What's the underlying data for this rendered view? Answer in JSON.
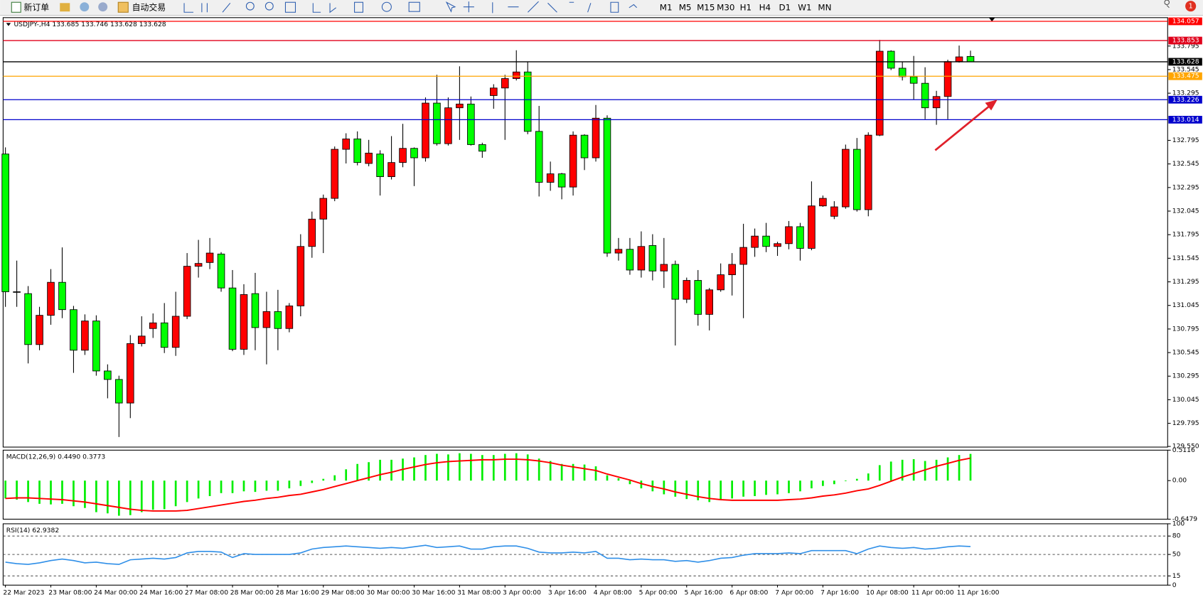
{
  "toolbar": {
    "buttons": [
      "新订单",
      "自动交易"
    ],
    "timeframes": [
      "M1",
      "M5",
      "M15",
      "M30",
      "H1",
      "H4",
      "D1",
      "W1",
      "MN"
    ],
    "badge": "1"
  },
  "chart_data": [
    {
      "type": "candlestick",
      "label": "USDJPY-,H4 133.685 133.746 133.628 133.628",
      "up_color": "#ff0000",
      "down_color": "#00ff00",
      "categories": [
        "22 Mar 2023",
        null,
        null,
        null,
        "23 Mar 08:00",
        null,
        null,
        null,
        "24 Mar 00:00",
        null,
        null,
        null,
        "24 Mar 16:00",
        null,
        null,
        null,
        "27 Mar 08:00",
        null,
        null,
        null,
        "28 Mar 00:00",
        null,
        null,
        null,
        "28 Mar 16:00",
        null,
        null,
        null,
        "29 Mar 08:00",
        null,
        null,
        null,
        "30 Mar 00:00",
        null,
        null,
        null,
        "30 Mar 16:00",
        null,
        null,
        null,
        "31 Mar 08:00",
        null,
        null,
        null,
        "3 Apr 00:00",
        null,
        null,
        null,
        "3 Apr 16:00",
        null,
        null,
        null,
        "4 Apr 08:00",
        null,
        null,
        null,
        "5 Apr 00:00",
        null,
        null,
        null,
        "5 Apr 16:00",
        null,
        null,
        null,
        "6 Apr 08:00",
        null,
        null,
        null,
        "7 Apr 00:00",
        null,
        null,
        null,
        "7 Apr 16:00",
        null,
        null,
        null,
        "10 Apr 08:00",
        null,
        null,
        null,
        "11 Apr 00:00",
        null,
        null,
        null,
        "11 Apr 16:00",
        null
      ],
      "open": [
        132.65,
        131.19,
        131.17,
        130.63,
        130.94,
        131.29,
        131.0,
        130.57,
        130.88,
        130.35,
        130.26,
        130.01,
        130.64,
        130.8,
        130.86,
        130.6,
        130.93,
        131.46,
        131.5,
        131.59,
        131.23,
        130.58,
        131.17,
        130.81,
        130.98,
        130.8,
        131.04,
        131.67,
        131.96,
        132.18,
        132.7,
        132.81,
        132.55,
        132.65,
        132.41,
        132.56,
        132.71,
        132.61,
        133.19,
        132.76,
        133.14,
        133.18,
        132.75,
        133.27,
        133.35,
        133.45,
        133.52,
        132.89,
        132.35,
        132.44,
        132.3,
        132.85,
        132.61,
        133.03,
        131.6,
        131.64,
        131.42,
        131.68,
        131.41,
        131.48,
        131.11,
        131.31,
        130.95,
        131.21,
        131.37,
        131.48,
        131.66,
        131.78,
        131.67,
        131.7,
        131.88,
        131.65,
        132.1,
        131.99,
        132.09,
        132.7,
        132.06,
        132.85,
        133.74,
        133.56,
        133.47,
        133.4,
        133.14,
        133.26,
        133.63,
        133.685
      ],
      "high": [
        132.72,
        131.52,
        131.25,
        131.03,
        131.43,
        131.66,
        131.04,
        130.95,
        130.94,
        130.42,
        130.3,
        130.73,
        130.93,
        130.96,
        131.07,
        131.19,
        131.6,
        131.74,
        131.76,
        131.61,
        131.42,
        131.27,
        131.39,
        131.19,
        131.21,
        131.07,
        131.8,
        132.04,
        132.22,
        132.73,
        132.87,
        132.89,
        132.8,
        132.69,
        132.84,
        132.97,
        132.72,
        133.25,
        133.49,
        133.25,
        133.58,
        133.26,
        132.77,
        133.39,
        133.49,
        133.75,
        133.63,
        133.16,
        132.57,
        132.45,
        132.89,
        132.86,
        133.17,
        133.06,
        131.76,
        131.76,
        131.83,
        131.8,
        131.76,
        131.52,
        131.34,
        131.42,
        131.23,
        131.49,
        131.6,
        131.91,
        131.86,
        131.92,
        131.72,
        131.94,
        131.92,
        132.36,
        132.21,
        132.15,
        132.75,
        132.82,
        132.88,
        133.86,
        133.75,
        133.63,
        133.69,
        133.57,
        133.32,
        133.65,
        133.8,
        133.746
      ],
      "low": [
        131.03,
        131.03,
        130.43,
        130.57,
        130.84,
        130.91,
        130.33,
        130.52,
        130.3,
        130.06,
        129.65,
        129.85,
        130.61,
        130.7,
        130.54,
        130.51,
        130.9,
        131.34,
        131.43,
        131.19,
        130.56,
        130.52,
        130.57,
        130.42,
        130.57,
        130.76,
        130.93,
        131.55,
        131.6,
        132.15,
        132.55,
        132.53,
        132.52,
        132.21,
        132.38,
        132.51,
        132.31,
        132.57,
        132.74,
        132.74,
        132.8,
        132.74,
        132.61,
        133.13,
        132.8,
        133.43,
        132.86,
        132.2,
        132.26,
        132.17,
        132.21,
        132.48,
        132.57,
        131.56,
        131.52,
        131.37,
        131.34,
        131.31,
        131.23,
        130.62,
        131.07,
        130.83,
        130.78,
        131.19,
        131.15,
        130.91,
        131.56,
        131.61,
        131.57,
        131.64,
        131.52,
        131.63,
        132.09,
        131.96,
        132.07,
        132.04,
        131.99,
        132.84,
        133.54,
        133.43,
        133.23,
        133.02,
        132.96,
        133.02,
        133.62,
        133.628
      ],
      "close": [
        131.19,
        131.19,
        130.63,
        130.94,
        131.29,
        131.0,
        130.57,
        130.88,
        130.35,
        130.26,
        130.01,
        130.64,
        130.72,
        130.86,
        130.6,
        130.93,
        131.46,
        131.49,
        131.6,
        131.23,
        130.58,
        131.16,
        130.81,
        130.98,
        130.8,
        131.04,
        131.67,
        131.96,
        132.18,
        132.7,
        132.81,
        132.56,
        132.66,
        132.41,
        132.56,
        132.71,
        132.61,
        133.19,
        132.76,
        133.14,
        133.18,
        132.75,
        132.68,
        133.35,
        133.45,
        133.52,
        132.89,
        132.35,
        132.44,
        132.3,
        132.85,
        132.61,
        133.03,
        131.6,
        131.64,
        131.42,
        131.67,
        131.41,
        131.48,
        131.11,
        131.31,
        130.95,
        131.21,
        131.37,
        131.48,
        131.66,
        131.78,
        131.67,
        131.7,
        131.88,
        131.65,
        132.1,
        132.18,
        132.09,
        132.7,
        132.06,
        132.85,
        133.74,
        133.56,
        133.47,
        133.4,
        133.14,
        133.26,
        133.63,
        133.68,
        133.628
      ],
      "ylim": [
        129.543,
        134.096
      ],
      "yticks": [
        133.795,
        133.545,
        133.295,
        132.795,
        132.545,
        132.295,
        132.045,
        131.795,
        131.545,
        131.295,
        131.045,
        130.795,
        130.545,
        130.295,
        130.045,
        129.795,
        {
          "value": 129.55,
          "label": "129.550"
        }
      ],
      "levels": [
        {
          "value": 134.057,
          "color": "#ff0000"
        },
        {
          "value": 133.853,
          "color": "#e0001a"
        },
        {
          "value": 133.628,
          "color": "#000000"
        },
        {
          "value": 133.475,
          "color": "#ffa500"
        },
        {
          "value": 133.226,
          "color": "#0000cc"
        },
        {
          "value": 133.014,
          "color": "#0000cc"
        }
      ],
      "grid": false
    },
    {
      "type": "macd",
      "label": "MACD(12,26,9) 0.4490 0.3773",
      "series": [
        {
          "color": "#00ee00",
          "values": [
            -0.3,
            -0.32,
            -0.36,
            -0.39,
            -0.4,
            -0.39,
            -0.43,
            -0.46,
            -0.53,
            -0.55,
            -0.59,
            -0.58,
            -0.53,
            -0.49,
            -0.48,
            -0.43,
            -0.36,
            -0.3,
            -0.26,
            -0.21,
            -0.21,
            -0.18,
            -0.19,
            -0.17,
            -0.17,
            -0.13,
            -0.09,
            -0.04,
            0.03,
            0.09,
            0.19,
            0.28,
            0.31,
            0.35,
            0.35,
            0.37,
            0.39,
            0.43,
            0.45,
            0.44,
            0.46,
            0.45,
            0.43,
            0.43,
            0.45,
            0.46,
            0.44,
            0.37,
            0.33,
            0.28,
            0.28,
            0.27,
            0.24,
            0.09,
            0.04,
            -0.06,
            -0.13,
            -0.18,
            -0.23,
            -0.27,
            -0.31,
            -0.33,
            -0.36,
            -0.32,
            -0.3,
            -0.27,
            -0.26,
            -0.24,
            -0.23,
            -0.21,
            -0.18,
            -0.13,
            -0.09,
            -0.06,
            -0.01,
            0.03,
            0.12,
            0.26,
            0.32,
            0.35,
            0.36,
            0.33,
            0.35,
            0.39,
            0.43,
            0.449
          ]
        },
        {
          "color": "#ff0000",
          "values": [
            -0.3,
            -0.29,
            -0.29,
            -0.3,
            -0.31,
            -0.32,
            -0.34,
            -0.36,
            -0.39,
            -0.42,
            -0.45,
            -0.48,
            -0.5,
            -0.51,
            -0.51,
            -0.51,
            -0.5,
            -0.47,
            -0.44,
            -0.41,
            -0.38,
            -0.35,
            -0.33,
            -0.3,
            -0.28,
            -0.25,
            -0.23,
            -0.19,
            -0.15,
            -0.1,
            -0.05,
            0.0,
            0.05,
            0.1,
            0.14,
            0.19,
            0.23,
            0.27,
            0.3,
            0.32,
            0.33,
            0.34,
            0.35,
            0.35,
            0.36,
            0.36,
            0.35,
            0.33,
            0.3,
            0.26,
            0.23,
            0.2,
            0.17,
            0.11,
            0.06,
            0.01,
            -0.05,
            -0.1,
            -0.14,
            -0.19,
            -0.23,
            -0.27,
            -0.3,
            -0.32,
            -0.33,
            -0.33,
            -0.33,
            -0.33,
            -0.33,
            -0.32,
            -0.31,
            -0.29,
            -0.26,
            -0.24,
            -0.21,
            -0.17,
            -0.14,
            -0.08,
            -0.01,
            0.06,
            0.12,
            0.18,
            0.24,
            0.29,
            0.34,
            0.3773
          ]
        }
      ],
      "ylim": [
        -0.6479,
        0.5116
      ],
      "yticks": [
        0.5116,
        {
          "value": 0,
          "label": "0.00"
        },
        -0.6479
      ]
    },
    {
      "type": "line",
      "label": "RSI(14) 62.9382",
      "color": "#2f8fe8",
      "values": [
        37.5,
        35,
        33.8,
        36.3,
        40,
        42.5,
        40,
        36.3,
        37.5,
        35,
        33.8,
        41.3,
        42.5,
        43.8,
        42.5,
        45,
        52.5,
        55,
        55,
        53.8,
        45,
        51.3,
        50,
        50,
        50,
        50,
        52.5,
        58.8,
        61.3,
        62.5,
        63.8,
        62.5,
        61.3,
        60,
        61.3,
        60,
        62.5,
        65,
        61.3,
        62.5,
        63.8,
        58.8,
        58.8,
        62.5,
        63.8,
        63.8,
        60,
        53.8,
        52.5,
        52.5,
        53.8,
        52.5,
        55,
        43.8,
        43.8,
        41.3,
        42.5,
        41.3,
        41.3,
        38.8,
        40,
        37.5,
        40,
        43.8,
        45,
        48.8,
        51.3,
        51.3,
        51.3,
        52.5,
        51.3,
        56.3,
        56.3,
        56.3,
        56.3,
        51.3,
        58.8,
        63.8,
        61.3,
        60,
        61.3,
        58.8,
        60,
        62.5,
        63.8,
        62.9382
      ],
      "ylim": [
        0,
        100
      ],
      "yticks": [
        100,
        80,
        50,
        15,
        0
      ],
      "levels": [
        80,
        50,
        15
      ]
    }
  ]
}
